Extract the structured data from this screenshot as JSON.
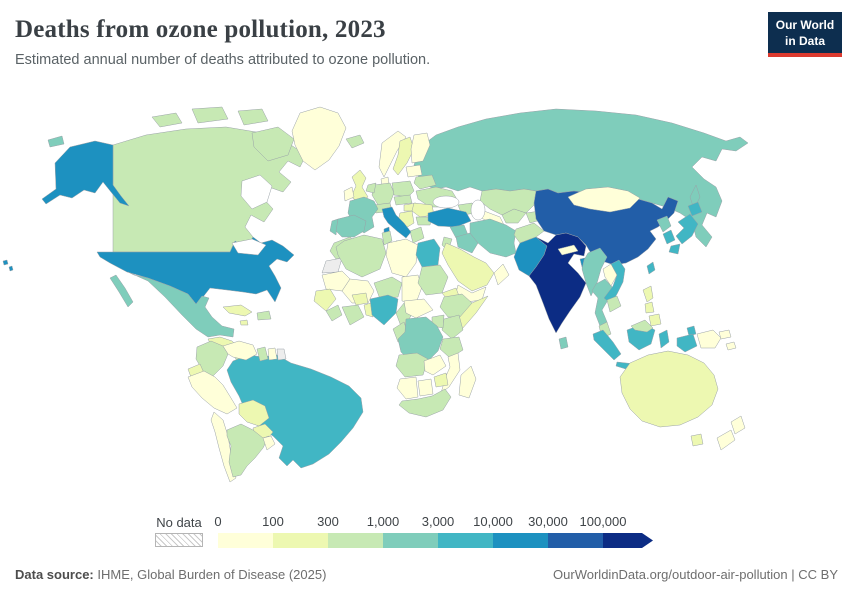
{
  "header": {
    "title": "Deaths from ozone pollution, 2023",
    "subtitle": "Estimated annual number of deaths attributed to ozone pollution."
  },
  "logo": {
    "line1": "Our World",
    "line2": "in Data",
    "bg_color": "#0d2e4f",
    "accent_color": "#dc3a2f"
  },
  "legend": {
    "no_data_label": "No data",
    "tick_labels": [
      "0",
      "100",
      "300",
      "1,000",
      "3,000",
      "10,000",
      "30,000",
      "100,000"
    ],
    "colors": [
      "#ffffd9",
      "#edf8b1",
      "#c7e9b4",
      "#7fcdbb",
      "#41b6c4",
      "#1d91c0",
      "#225ea8",
      "#0c2c84"
    ]
  },
  "map": {
    "no_data_fill": "#ededed",
    "border_color": "#9aa2a8",
    "sea_color": "#ffffff"
  },
  "footer": {
    "source_label": "Data source:",
    "source_text": " IHME, Global Burden of Disease (2025)",
    "link_text": "OurWorldinData.org/outdoor-air-pollution",
    "divider": " | ",
    "license": "CC BY"
  },
  "chart_data": {
    "type": "choropleth",
    "title": "Deaths from ozone pollution, 2023",
    "subtitle": "Estimated annual number of deaths attributed to ozone pollution.",
    "year": 2023,
    "legend_position": "bottom",
    "bin_ranges": [
      "0–100",
      "100–300",
      "300–1,000",
      "1,000–3,000",
      "3,000–10,000",
      "10,000–30,000",
      "30,000–100,000",
      "100,000+"
    ],
    "bin_colors": [
      "#ffffd9",
      "#edf8b1",
      "#c7e9b4",
      "#7fcdbb",
      "#41b6c4",
      "#1d91c0",
      "#225ea8",
      "#0c2c84"
    ],
    "no_data_value": -1,
    "country_bins": {
      "United States": 5,
      "Canada": 2,
      "Mexico": 3,
      "Greenland": 0,
      "Cuba": 1,
      "Jamaica": 1,
      "Hispaniola": 2,
      "Central America": 1,
      "Panama & Costa Rica": 2,
      "Colombia": 2,
      "Venezuela": 0,
      "Guyana": 2,
      "Suriname": 0,
      "French Guiana": -1,
      "Ecuador": 1,
      "Peru": 0,
      "Brazil": 4,
      "Bolivia": 1,
      "Paraguay": 1,
      "Chile": 0,
      "Argentina": 2,
      "Uruguay": 0,
      "Iceland": 2,
      "United Kingdom": 1,
      "Ireland": 0,
      "Norway": 0,
      "Sweden": 1,
      "Finland": 0,
      "Denmark": 0,
      "Baltic states": 0,
      "Germany": 2,
      "Netherlands & Belgium": 2,
      "France": 3,
      "Spain": 3,
      "Portugal": 3,
      "Italy": 5,
      "Switzerland & Austria": 2,
      "Czechia & Slovakia": 2,
      "Poland": 2,
      "Belarus": 2,
      "Ukraine": 2,
      "Hungary": 1,
      "Romania": 1,
      "Balkans": 1,
      "Bulgaria": 2,
      "Greece": 2,
      "Russia": 3,
      "Kazakhstan": 2,
      "Uzbekistan": 2,
      "Turkmenistan": 0,
      "Kyrgyzstan & Tajikistan": 2,
      "Caucasus": 2,
      "Turkey": 5,
      "Syria": 3,
      "Iraq": 3,
      "Iran": 3,
      "Jordan & Israel": 2,
      "Saudi Arabia": 1,
      "Yemen": 0,
      "Oman": 0,
      "Afghanistan": 2,
      "Pakistan": 5,
      "India": 7,
      "Nepal": 0,
      "Bangladesh": 5,
      "Sri Lanka": 3,
      "China": 6,
      "Mongolia": 0,
      "North Korea": 3,
      "South Korea": 4,
      "Japan": 4,
      "Taiwan": 4,
      "Myanmar": 3,
      "Laos": 0,
      "Thailand": 3,
      "Vietnam": 4,
      "Cambodia": 2,
      "Malaysia": 2,
      "Indonesia": 4,
      "Philippines": 1,
      "Papua New Guinea": 0,
      "Solomon Islands": 0,
      "Australia": 1,
      "New Zealand": 0,
      "Morocco": 2,
      "Western Sahara": -1,
      "Algeria": 2,
      "Tunisia": 2,
      "Libya": 0,
      "Egypt": 4,
      "Mauritania": 0,
      "Mali": 0,
      "Senegal & Guinea": 1,
      "Sierra Leone & Liberia": 2,
      "Côte d'Ivoire & Ghana": 2,
      "Burkina Faso": 1,
      "Togo & Benin": 1,
      "Niger": 2,
      "Chad": 0,
      "Sudan": 2,
      "Eritrea": 1,
      "Nigeria": 4,
      "Cameroon": 2,
      "Central African Republic": 0,
      "Ethiopia": 2,
      "Somalia": 1,
      "Kenya": 2,
      "Uganda": 2,
      "Gabon & Congo": 2,
      "DR Congo": 3,
      "Tanzania": 2,
      "Angola": 2,
      "Zambia": 0,
      "Mozambique": 0,
      "Zimbabwe": 1,
      "Namibia": 0,
      "Botswana": 0,
      "South Africa": 2,
      "Madagascar": 0
    },
    "source": "IHME, Global Burden of Disease (2025)"
  }
}
